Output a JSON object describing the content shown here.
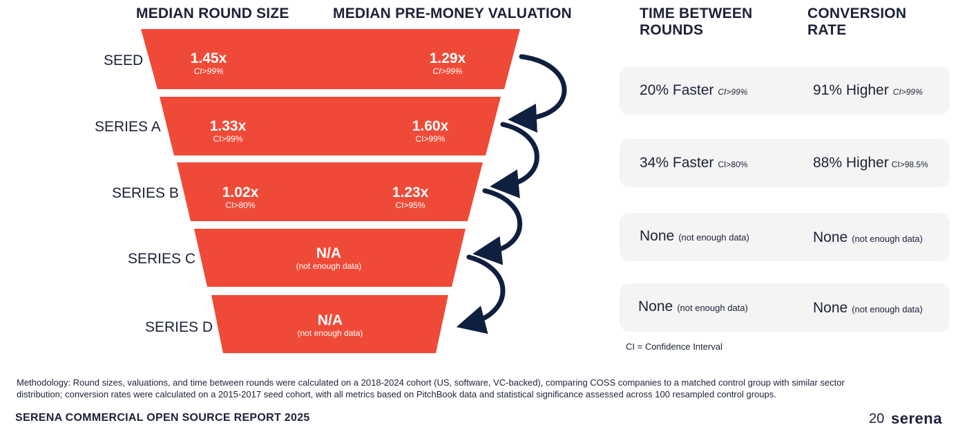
{
  "headers": {
    "round_size": "MEDIAN ROUND SIZE",
    "valuation": "MEDIAN PRE-MONEY VALUATION",
    "time_line1": "TIME BETWEEN",
    "time_line2": "ROUNDS",
    "conv_line1": "CONVERSION",
    "conv_line2": "RATE"
  },
  "stages": [
    {
      "label": "SEED",
      "round": "1.45x",
      "round_ci": "CI>99%",
      "val": "1.29x",
      "val_ci": "CI>99%"
    },
    {
      "label": "SERIES A",
      "round": "1.33x",
      "round_ci": "CI>99%",
      "val": "1.60x",
      "val_ci": "CI>99%"
    },
    {
      "label": "SERIES B",
      "round": "1.02x",
      "round_ci": "CI>80%",
      "val": "1.23x",
      "val_ci": "CI>95%"
    },
    {
      "label": "SERIES C",
      "na": "N/A",
      "na_note": "(not enough data)"
    },
    {
      "label": "SERIES D",
      "na": "N/A",
      "na_note": "(not enough data)"
    }
  ],
  "cards": [
    {
      "time": "20% Faster",
      "time_ci": "CI>99%",
      "conv": "91% Higher",
      "conv_ci": "CI>99%"
    },
    {
      "time": "34% Faster",
      "time_ci": "CI>80%",
      "conv": "88% Higher",
      "conv_ci": "CI>98.5%"
    },
    {
      "time": "None",
      "time_ci": "(not enough data)",
      "conv": "None",
      "conv_ci": "(not enough data)"
    },
    {
      "time": "None",
      "time_ci": "(not enough data)",
      "conv": "None",
      "conv_ci": "(not enough data)"
    }
  ],
  "legend": "CI = Confidence Interval",
  "methodology": "Methodology:  Round sizes, valuations, and time between rounds were calculated on a 2018-2024 cohort (US, software, VC-backed), comparing COSS companies to a matched control group with similar sector distribution; conversion rates were calculated on a 2015-2017 seed cohort, with all metrics based on PitchBook data and statistical significance assessed across 100 resampled control groups.",
  "footer": "SERENA COMMERCIAL OPEN SOURCE  REPORT  2025",
  "page_number": "20",
  "brand": "serena",
  "colors": {
    "funnel": "#ef4a38",
    "arrow": "#0f1f3f",
    "card": "#f4f4f5"
  }
}
